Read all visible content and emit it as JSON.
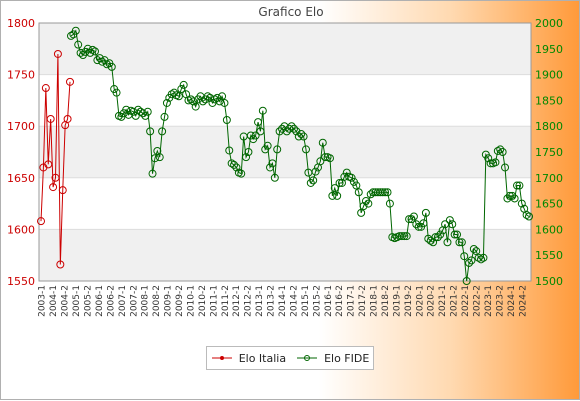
{
  "chart_data": {
    "type": "line",
    "title": "Grafico Elo",
    "xlabel": "",
    "ylabel": "",
    "y_left": {
      "min": 1550,
      "max": 1800,
      "ticks": [
        1550,
        1600,
        1650,
        1700,
        1750,
        1800
      ],
      "color": "#cc0000"
    },
    "y_right": {
      "min": 1500,
      "max": 2000,
      "ticks": [
        1500,
        1550,
        1600,
        1650,
        1700,
        1750,
        1800,
        1850,
        1900,
        1950,
        2000
      ],
      "color": "#008800"
    },
    "x_tick_labels": [
      "2003-1",
      "2004-1",
      "2004-2",
      "2005-1",
      "2005-2",
      "2006-1",
      "2006-2",
      "2007-1",
      "2007-2",
      "2008-1",
      "2008-2",
      "2009-1",
      "2009-2",
      "2010-1",
      "2010-2",
      "2011-1",
      "2011-2",
      "2012-1",
      "2012-2",
      "2013-1",
      "2013-2",
      "2014-1",
      "2014-2",
      "2015-1",
      "2015-2",
      "2016-1",
      "2016-2",
      "2017-1",
      "2017-2",
      "2018-1",
      "2018-2",
      "2019-1",
      "2019-2",
      "2020-1",
      "2020-2",
      "2021-1",
      "2021-2",
      "2022-1",
      "2022-2",
      "2023-1",
      "2023-2",
      "2024-1",
      "2024-2"
    ],
    "grid": true,
    "legend_position": "bottom-center",
    "series": [
      {
        "name": "Elo Italia",
        "axis": "left",
        "color": "#cc0000",
        "values": [
          1608,
          1660,
          1737,
          1663,
          1707,
          1641,
          1650,
          1770,
          1566,
          1638,
          1701,
          1707,
          1743
        ]
      },
      {
        "name": "Elo FIDE",
        "axis": "right",
        "color": "#006600",
        "values": [
          1975,
          1978,
          1985,
          1958,
          1942,
          1938,
          1944,
          1950,
          1942,
          1948,
          1945,
          1928,
          1932,
          1925,
          1928,
          1920,
          1922,
          1915,
          1872,
          1865,
          1820,
          1818,
          1825,
          1832,
          1822,
          1830,
          1828,
          1820,
          1832,
          1828,
          1825,
          1820,
          1828,
          1790,
          1708,
          1738,
          1752,
          1740,
          1790,
          1818,
          1845,
          1855,
          1862,
          1865,
          1860,
          1858,
          1872,
          1880,
          1862,
          1850,
          1852,
          1848,
          1838,
          1852,
          1858,
          1848,
          1852,
          1858,
          1855,
          1845,
          1852,
          1855,
          1848,
          1858,
          1845,
          1812,
          1753,
          1728,
          1725,
          1720,
          1710,
          1708,
          1780,
          1740,
          1750,
          1782,
          1775,
          1782,
          1808,
          1790,
          1830,
          1755,
          1762,
          1720,
          1728,
          1700,
          1755,
          1790,
          1795,
          1800,
          1790,
          1795,
          1800,
          1795,
          1790,
          1780,
          1785,
          1780,
          1755,
          1710,
          1690,
          1695,
          1712,
          1720,
          1732,
          1768,
          1740,
          1740,
          1738,
          1665,
          1680,
          1665,
          1690,
          1690,
          1702,
          1710,
          1702,
          1700,
          1692,
          1685,
          1672,
          1632,
          1645,
          1655,
          1650,
          1668,
          1672,
          1672,
          1672,
          1672,
          1672,
          1672,
          1672,
          1650,
          1585,
          1583,
          1585,
          1587,
          1587,
          1587,
          1587,
          1620,
          1620,
          1625,
          1610,
          1605,
          1605,
          1612,
          1632,
          1582,
          1578,
          1575,
          1585,
          1585,
          1590,
          1598,
          1610,
          1575,
          1618,
          1610,
          1590,
          1590,
          1575,
          1575,
          1548,
          1500,
          1535,
          1540,
          1562,
          1558,
          1545,
          1542,
          1545,
          1745,
          1738,
          1728,
          1728,
          1730,
          1752,
          1755,
          1750,
          1720,
          1660,
          1665,
          1665,
          1660,
          1685,
          1685,
          1650,
          1640,
          1628,
          1625
        ]
      }
    ]
  }
}
